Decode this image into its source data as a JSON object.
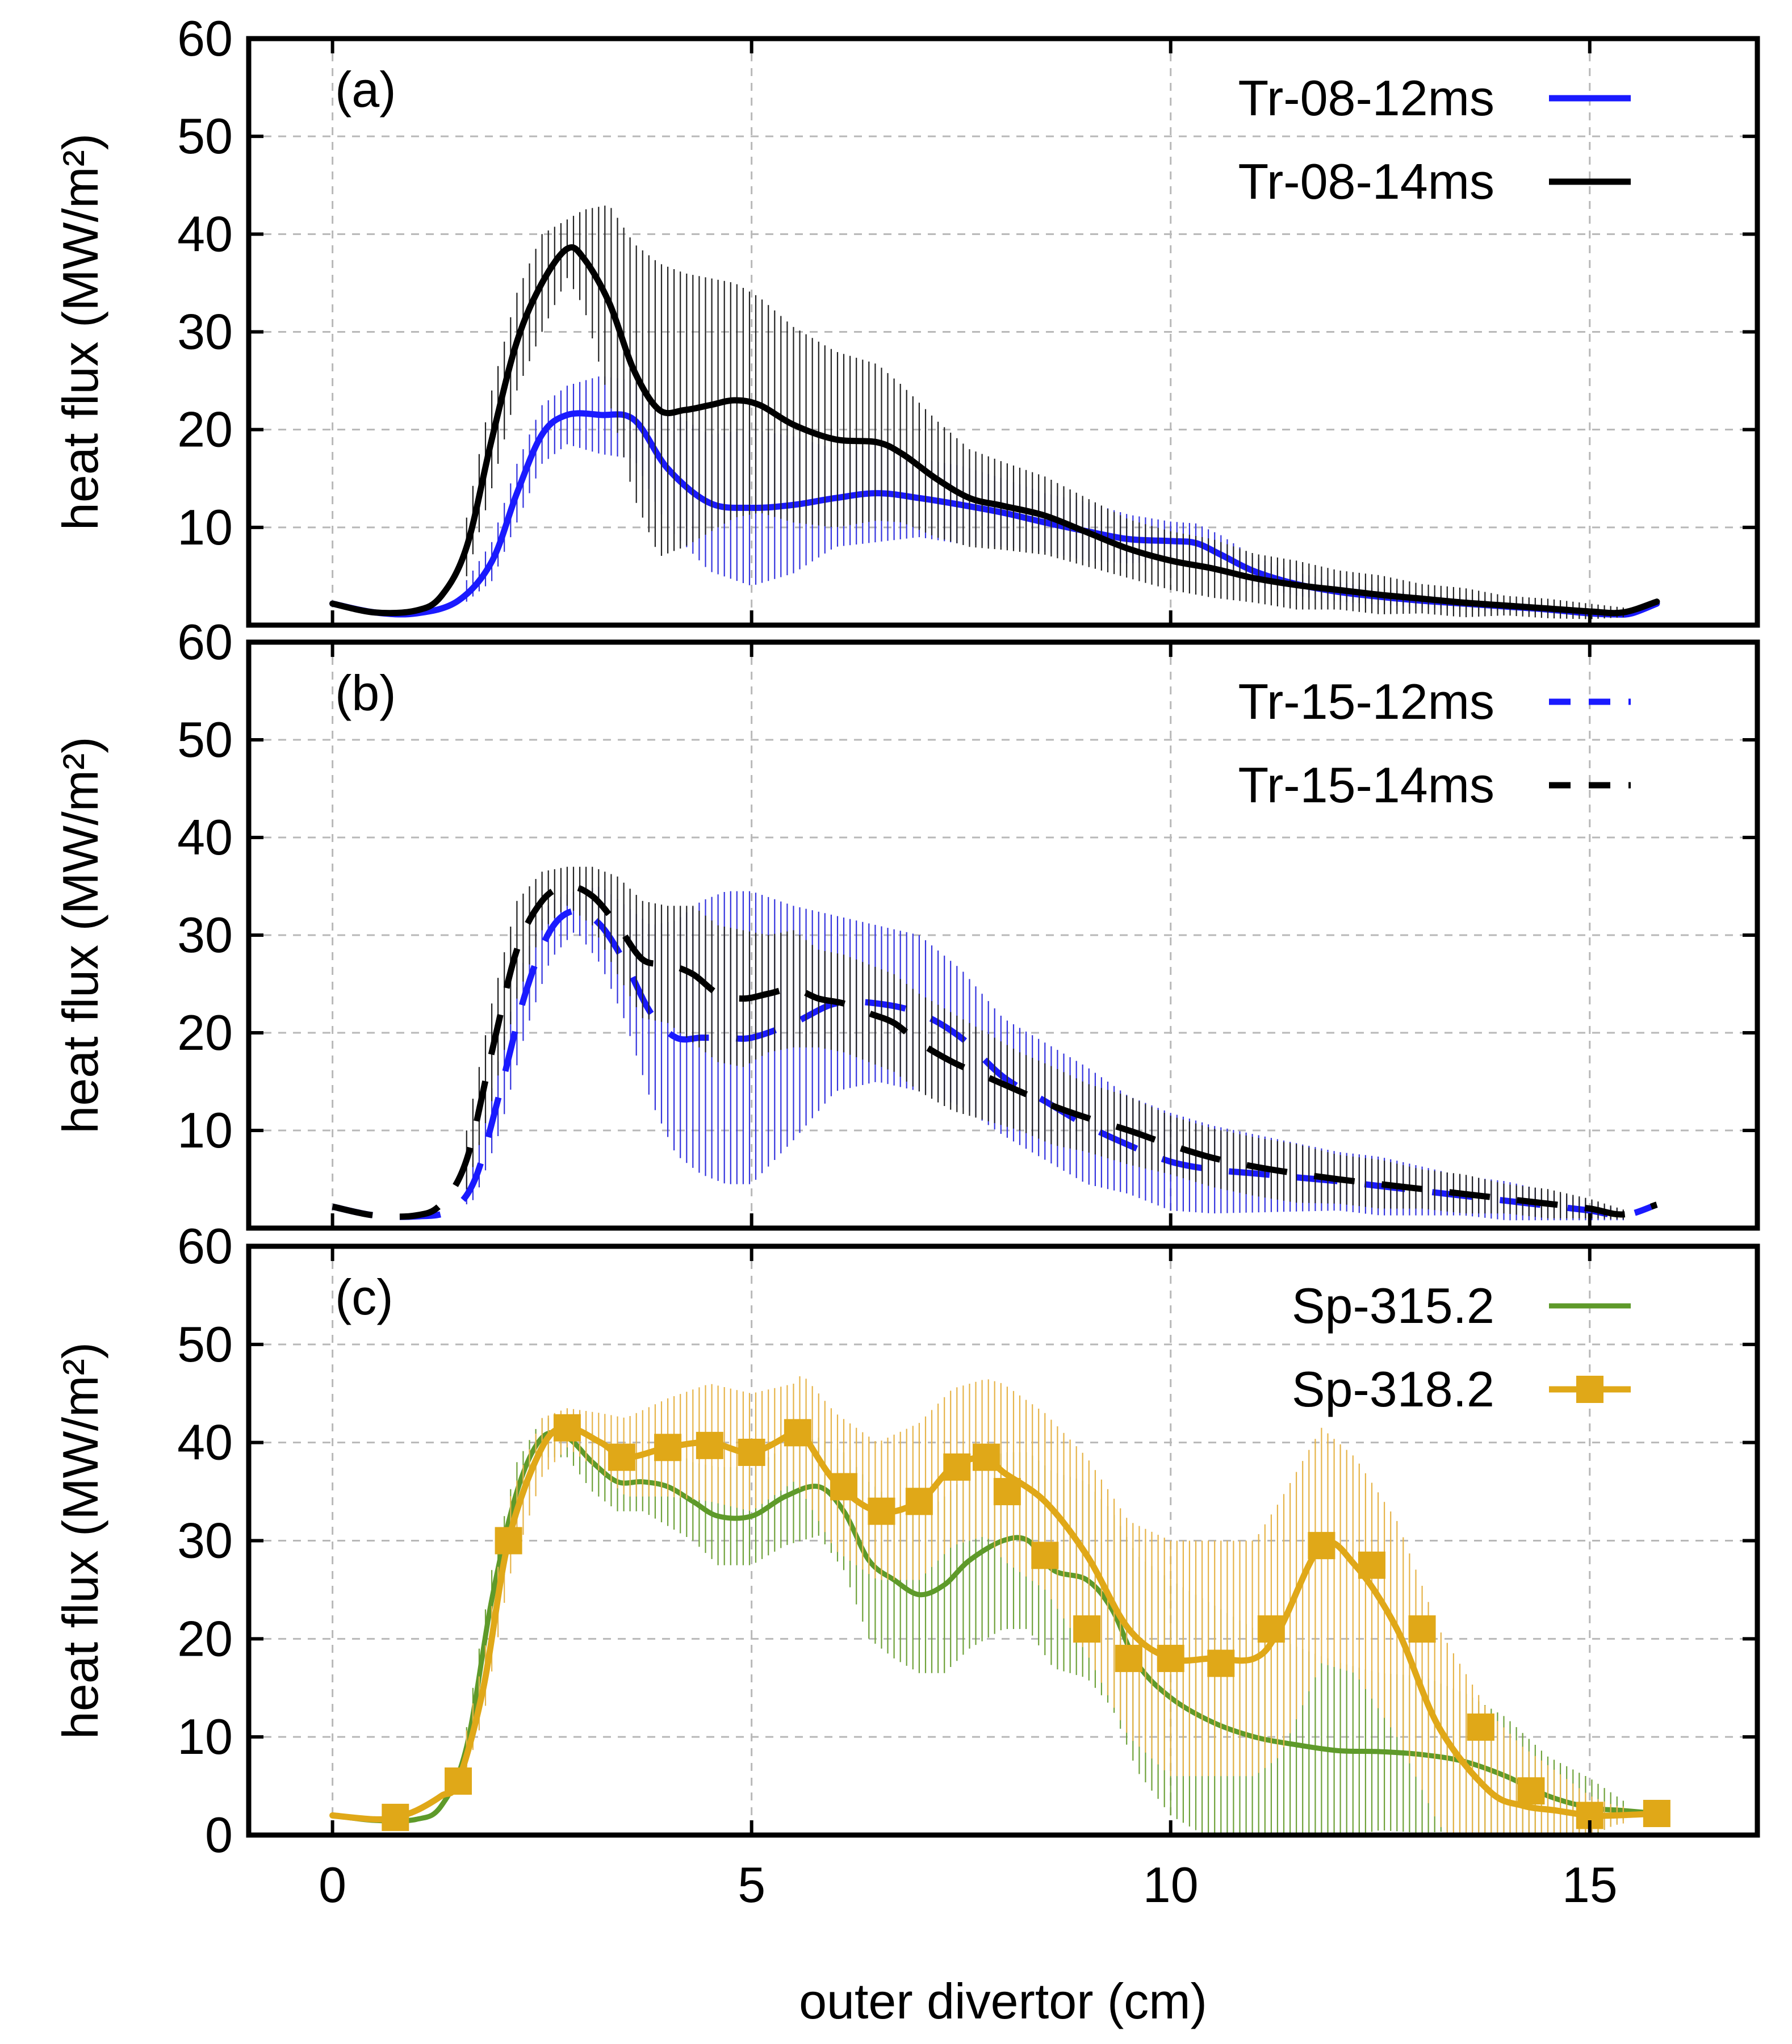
{
  "chart_data": [
    {
      "type": "line",
      "panel_label": "(a)",
      "ylabel": "heat flux (MW/m²)",
      "xlim": [
        -1,
        17
      ],
      "ylim": [
        0,
        60
      ],
      "yticks": [
        "60",
        "50",
        "40",
        "30",
        "20",
        "10"
      ],
      "grid": true,
      "legend_position": "top-right",
      "series": [
        {
          "name": "Tr-08-12ms",
          "color": "#1a1aff",
          "style": "solid",
          "marker": "none",
          "error_bars": true,
          "error_color": "#3333dd",
          "x": [
            0,
            0.5,
            1.0,
            1.5,
            1.9,
            2.2,
            2.5,
            2.8,
            3.2,
            3.6,
            4.0,
            4.5,
            5.0,
            5.5,
            6.0,
            6.5,
            7.0,
            7.5,
            8.0,
            8.5,
            9.0,
            9.5,
            10.0,
            10.3,
            10.6,
            11.0,
            11.5,
            12.0,
            12.5,
            13.0,
            13.5,
            14.0,
            14.5,
            15.0,
            15.3,
            15.5,
            15.8
          ],
          "y": [
            2.2,
            1.3,
            1.2,
            2.5,
            6.5,
            13.5,
            19.5,
            21.5,
            21.5,
            21.0,
            16.0,
            12.5,
            12.0,
            12.3,
            13.0,
            13.5,
            13.0,
            12.3,
            11.5,
            10.5,
            9.6,
            8.8,
            8.6,
            8.4,
            7.2,
            5.5,
            4.2,
            3.4,
            2.9,
            2.5,
            2.2,
            1.9,
            1.6,
            1.2,
            1.1,
            1.2,
            2.2
          ],
          "err": [
            0.3,
            0.3,
            0.3,
            0.8,
            2,
            3,
            3,
            3,
            4,
            4,
            6,
            7,
            8,
            7,
            5,
            5,
            4,
            4,
            3.5,
            3,
            3,
            2.5,
            2,
            2,
            2,
            1.5,
            1.2,
            1,
            0.8,
            0.7,
            0.6,
            0.5,
            0.4,
            0.3,
            0.3,
            0.3,
            0.3
          ]
        },
        {
          "name": "Tr-08-14ms",
          "color": "#000000",
          "style": "solid",
          "marker": "none",
          "error_bars": true,
          "error_color": "#222222",
          "x": [
            0,
            0.5,
            1.0,
            1.3,
            1.6,
            1.9,
            2.2,
            2.5,
            2.8,
            3.0,
            3.3,
            3.6,
            3.9,
            4.2,
            4.5,
            4.8,
            5.1,
            5.5,
            6.0,
            6.5,
            6.8,
            7.2,
            7.6,
            8.0,
            8.5,
            9.0,
            9.5,
            10.0,
            10.5,
            11.0,
            11.5,
            12.0,
            12.5,
            13.0,
            13.5,
            14.0,
            14.5,
            15.0,
            15.4,
            15.8
          ],
          "y": [
            2.2,
            1.3,
            1.5,
            3.0,
            8.0,
            19.0,
            29.0,
            35.0,
            38.5,
            37.5,
            33.0,
            26.0,
            22.0,
            22.0,
            22.5,
            23.0,
            22.5,
            20.5,
            19.0,
            18.7,
            17.5,
            15.0,
            13.0,
            12.2,
            11.2,
            9.5,
            7.8,
            6.6,
            5.8,
            4.8,
            4.1,
            3.6,
            3.1,
            2.7,
            2.3,
            2.0,
            1.7,
            1.4,
            1.3,
            2.4
          ],
          "err": [
            0.3,
            0.3,
            0.4,
            1,
            3,
            5,
            5,
            5,
            3,
            5,
            10,
            13,
            15,
            14,
            13,
            12,
            11,
            10,
            9,
            8,
            7,
            6,
            5,
            4.5,
            4,
            3.5,
            3,
            3,
            3,
            2.5,
            2.5,
            2,
            2,
            1.5,
            1.5,
            1,
            1,
            0.8,
            0.5,
            0.3
          ]
        }
      ]
    },
    {
      "type": "line",
      "panel_label": "(b)",
      "ylabel": "heat flux (MW/m²)",
      "xlim": [
        -1,
        17
      ],
      "ylim": [
        0,
        60
      ],
      "yticks": [
        "60",
        "50",
        "40",
        "30",
        "20",
        "10"
      ],
      "grid": true,
      "legend_position": "top-right",
      "series": [
        {
          "name": "Tr-15-12ms",
          "color": "#1a1aff",
          "style": "dashed",
          "marker": "none",
          "error_bars": true,
          "error_color": "#3333dd",
          "x": [
            0,
            0.5,
            1.0,
            1.4,
            1.7,
            2.0,
            2.3,
            2.6,
            2.9,
            3.2,
            3.5,
            3.8,
            4.1,
            4.4,
            4.7,
            5.0,
            5.5,
            6.0,
            6.5,
            7.0,
            7.5,
            8.0,
            8.5,
            9.0,
            9.5,
            10.0,
            10.5,
            11.0,
            11.5,
            12.0,
            12.5,
            13.0,
            13.5,
            14.0,
            14.5,
            15.0,
            15.4,
            15.8
          ],
          "y": [
            2.2,
            1.3,
            1.2,
            1.8,
            5.0,
            14.0,
            24.0,
            30.5,
            32.5,
            31.0,
            27.0,
            22.0,
            19.5,
            19.5,
            19.5,
            19.5,
            21.0,
            23.0,
            23.0,
            22.0,
            19.5,
            15.5,
            13.0,
            10.5,
            8.5,
            6.8,
            6.0,
            5.6,
            5.2,
            4.8,
            4.3,
            3.8,
            3.3,
            2.8,
            2.3,
            1.8,
            1.3,
            2.4
          ],
          "err": [
            0.3,
            0.3,
            0.3,
            0.5,
            2,
            4,
            4,
            3,
            2,
            4,
            6,
            9,
            12,
            14,
            15,
            15,
            12,
            9,
            8,
            8,
            7,
            6,
            6,
            6,
            5,
            5,
            4.5,
            4,
            3.5,
            3,
            3,
            2.5,
            2,
            2,
            1.5,
            1,
            0.5,
            0.3
          ]
        },
        {
          "name": "Tr-15-14ms",
          "color": "#000000",
          "style": "dashed",
          "marker": "none",
          "error_bars": true,
          "error_color": "#222222",
          "x": [
            0,
            0.5,
            1.0,
            1.3,
            1.6,
            1.9,
            2.2,
            2.5,
            2.8,
            3.1,
            3.4,
            3.7,
            4.0,
            4.3,
            4.6,
            4.9,
            5.2,
            5.5,
            5.8,
            6.1,
            6.4,
            6.7,
            7.0,
            7.4,
            7.8,
            8.2,
            8.6,
            9.0,
            9.5,
            10.0,
            10.5,
            11.0,
            11.5,
            12.0,
            12.5,
            13.0,
            13.5,
            14.0,
            14.5,
            15.0,
            15.4,
            15.8
          ],
          "y": [
            2.2,
            1.3,
            1.3,
            2.5,
            7.0,
            18.0,
            28.5,
            33.5,
            35.0,
            34.0,
            31.0,
            27.5,
            27.0,
            26.0,
            24.0,
            23.5,
            24.0,
            24.5,
            23.5,
            23.0,
            22.0,
            21.0,
            19.0,
            17.0,
            15.5,
            14.0,
            12.5,
            11.3,
            10.0,
            8.5,
            7.2,
            6.3,
            5.6,
            5.0,
            4.5,
            4.0,
            3.5,
            3.0,
            2.5,
            2.0,
            1.4,
            2.4
          ],
          "err": [
            0.3,
            0.3,
            0.4,
            1,
            3,
            5,
            5,
            3,
            2,
            3,
            5,
            6,
            6,
            7,
            7,
            7,
            6,
            6,
            5,
            5,
            5,
            5,
            5,
            5,
            4.5,
            4,
            4,
            3.5,
            3.5,
            3,
            3,
            3,
            3,
            2.5,
            2.5,
            2,
            2,
            1.5,
            1.5,
            1,
            0.5,
            0.3
          ]
        }
      ]
    },
    {
      "type": "line",
      "panel_label": "(c)",
      "ylabel": "heat flux (MW/m²)",
      "xlabel": "outer divertor (cm)",
      "xlim": [
        -1,
        17
      ],
      "ylim": [
        0,
        60
      ],
      "yticks": [
        "60",
        "50",
        "40",
        "30",
        "20",
        "10",
        "0"
      ],
      "xticks": [
        "0",
        "5",
        "10",
        "15"
      ],
      "xtick_values": [
        0,
        5,
        10,
        15
      ],
      "grid": true,
      "legend_position": "top-right",
      "series": [
        {
          "name": "Sp-315.2",
          "color": "#5e9a2a",
          "style": "solid",
          "marker": "none",
          "error_bars": true,
          "error_color": "#6fa23a",
          "x": [
            0,
            0.5,
            1.0,
            1.3,
            1.6,
            1.9,
            2.2,
            2.5,
            2.8,
            3.1,
            3.4,
            3.7,
            4.0,
            4.3,
            4.6,
            5.0,
            5.4,
            5.8,
            6.1,
            6.4,
            6.7,
            7.0,
            7.3,
            7.6,
            8.0,
            8.3,
            8.6,
            9.0,
            9.3,
            9.6,
            10.0,
            10.5,
            11.0,
            11.5,
            12.0,
            12.5,
            13.0,
            13.5,
            14.0,
            14.5,
            15.0,
            15.4,
            15.8
          ],
          "y": [
            2.0,
            1.5,
            1.6,
            3.0,
            9.0,
            24.0,
            35.0,
            40.5,
            40.5,
            38.0,
            36.0,
            36.0,
            35.5,
            34.0,
            32.5,
            32.5,
            34.5,
            35.5,
            33.0,
            28.0,
            26.0,
            24.5,
            25.5,
            28.0,
            30.0,
            30.0,
            27.0,
            26.0,
            23.0,
            17.5,
            14.0,
            11.5,
            10.0,
            9.2,
            8.6,
            8.5,
            8.2,
            7.5,
            6.0,
            4.0,
            2.8,
            2.5,
            2.2
          ],
          "err": [
            0.3,
            0.3,
            0.3,
            0.6,
            2,
            3,
            3,
            2,
            2,
            3,
            3,
            3,
            4,
            4,
            5,
            5,
            5,
            5,
            6,
            8,
            8,
            8,
            9,
            9,
            9,
            9,
            10,
            10,
            10,
            11,
            12,
            12,
            11,
            10,
            9,
            8,
            8,
            7,
            6,
            4,
            3,
            1,
            0.3
          ]
        },
        {
          "name": "Sp-318.2",
          "color": "#e0a818",
          "style": "solid",
          "marker": "square",
          "error_bars": true,
          "error_color": "#e6b44a",
          "x": [
            0,
            0.5,
            0.75,
            1.0,
            1.3,
            1.5,
            1.8,
            2.1,
            2.5,
            2.8,
            3.2,
            3.5,
            4.0,
            4.5,
            5.0,
            5.5,
            5.6,
            6.0,
            6.5,
            7.0,
            7.4,
            7.8,
            8.0,
            8.5,
            9.0,
            9.5,
            10.0,
            10.5,
            11.0,
            11.3,
            11.8,
            12.2,
            12.7,
            13.2,
            13.8,
            14.2,
            14.6,
            15.0,
            15.3,
            15.8
          ],
          "y": [
            2.0,
            1.6,
            1.8,
            2.5,
            4.0,
            5.5,
            15.0,
            30.0,
            39.5,
            41.5,
            40.0,
            38.5,
            39.5,
            40.0,
            39.0,
            41.0,
            41.0,
            36.0,
            33.0,
            34.0,
            37.5,
            38.5,
            37.0,
            34.0,
            28.5,
            21.0,
            18.0,
            18.0,
            18.0,
            21.0,
            29.5,
            27.5,
            21.0,
            11.0,
            4.5,
            3.0,
            2.5,
            2.0,
            2.0,
            2.2
          ],
          "markers_x": [
            0.75,
            1.5,
            2.1,
            2.8,
            3.45,
            4.0,
            4.5,
            5.0,
            5.55,
            6.1,
            6.55,
            7.0,
            7.45,
            7.8,
            8.05,
            8.5,
            9.0,
            9.5,
            10.0,
            10.6,
            11.2,
            11.8,
            12.4,
            13.0,
            13.7,
            14.3,
            15.0,
            15.8
          ],
          "markers_y": [
            1.8,
            5.5,
            30.0,
            41.5,
            38.5,
            39.5,
            39.7,
            39.0,
            41.0,
            35.5,
            33.0,
            34.0,
            37.5,
            38.5,
            35.0,
            28.5,
            21.0,
            18.0,
            18.0,
            17.5,
            21.0,
            29.5,
            27.5,
            21.0,
            11.0,
            4.5,
            2.0,
            2.2
          ],
          "err": [
            0.3,
            0.3,
            0.3,
            0.4,
            1,
            1.5,
            3,
            4,
            3,
            2,
            3,
            4,
            5,
            6,
            6,
            5,
            6,
            7,
            7,
            8,
            8,
            8,
            9,
            9,
            10,
            11,
            12,
            12,
            12,
            13,
            12,
            11,
            11,
            10,
            8,
            6,
            4,
            2,
            1,
            0.3
          ]
        }
      ]
    }
  ]
}
